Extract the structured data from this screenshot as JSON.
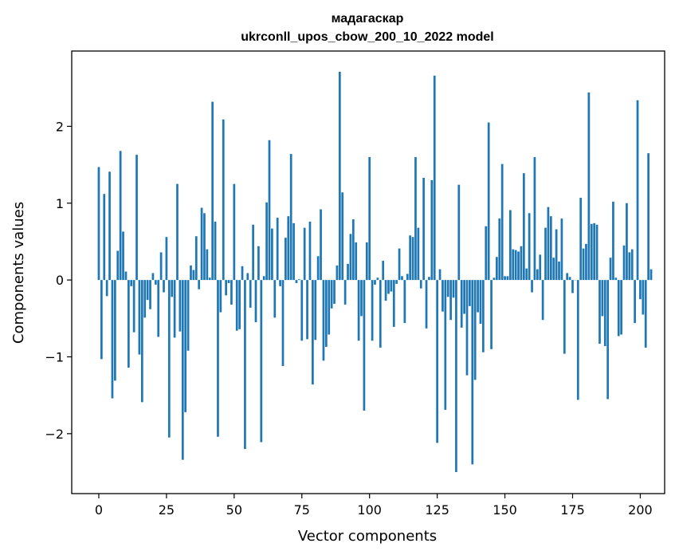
{
  "chart_data": {
    "type": "bar",
    "title": "мадагаскар",
    "subtitle": "ukrconll_upos_cbow_200_10_2022 model",
    "xlabel": "Vector components",
    "ylabel": "Components values",
    "xlim": [
      -10,
      209
    ],
    "ylim": [
      -2.78,
      2.98
    ],
    "xticks": [
      0,
      25,
      50,
      75,
      100,
      125,
      150,
      175,
      200
    ],
    "yticks": [
      -2,
      -1,
      0,
      1,
      2
    ],
    "ytick_labels": [
      "−2",
      "−1",
      "0",
      "1",
      "2"
    ],
    "bar_color": "#1f77b4",
    "values": [
      1.47,
      -1.03,
      1.12,
      -0.21,
      1.41,
      -1.54,
      -1.31,
      0.38,
      1.68,
      0.63,
      0.11,
      -1.14,
      -0.08,
      -0.68,
      1.63,
      -0.97,
      -1.59,
      -0.49,
      -0.26,
      -0.38,
      0.09,
      -0.06,
      -0.74,
      0.36,
      -0.16,
      0.56,
      -2.05,
      -0.22,
      -0.75,
      1.25,
      -0.67,
      -2.34,
      -1.72,
      -0.92,
      0.19,
      0.13,
      0.57,
      -0.12,
      0.94,
      0.87,
      0.4,
      0.03,
      2.32,
      0.76,
      -2.04,
      -0.42,
      2.09,
      -0.2,
      -0.04,
      -0.32,
      1.25,
      -0.66,
      -0.64,
      0.18,
      -2.2,
      0.09,
      -0.36,
      0.72,
      -0.55,
      0.44,
      -2.11,
      0.05,
      1.01,
      1.82,
      0.67,
      -0.49,
      0.81,
      -0.08,
      -1.12,
      0.55,
      0.83,
      1.64,
      0.74,
      -0.04,
      0.01,
      -0.79,
      0.68,
      -0.77,
      0.76,
      -1.36,
      -0.78,
      0.31,
      0.92,
      -1.05,
      -0.87,
      -0.71,
      -0.37,
      -0.31,
      0.19,
      2.71,
      1.14,
      -0.32,
      0.21,
      0.6,
      0.79,
      0.49,
      -0.79,
      -0.47,
      -1.7,
      0.49,
      1.6,
      -0.79,
      -0.06,
      0.03,
      -0.88,
      0.25,
      -0.27,
      -0.18,
      -0.15,
      -0.61,
      -0.05,
      0.41,
      0.05,
      -0.56,
      0.08,
      0.58,
      0.56,
      1.6,
      0.68,
      -0.11,
      1.33,
      -0.63,
      0.04,
      1.3,
      2.66,
      -2.12,
      0.14,
      -0.41,
      -1.69,
      -0.22,
      -0.52,
      -0.23,
      -2.5,
      1.24,
      -0.62,
      -0.44,
      -1.24,
      -0.34,
      -2.4,
      -1.3,
      -0.42,
      -0.57,
      -0.94,
      0.7,
      2.05,
      -0.9,
      0.03,
      0.3,
      0.8,
      1.51,
      0.05,
      0.05,
      0.91,
      0.4,
      0.39,
      0.37,
      0.44,
      1.39,
      0.15,
      0.87,
      -0.16,
      1.6,
      0.14,
      0.33,
      -0.52,
      0.68,
      0.95,
      0.83,
      0.29,
      0.66,
      0.24,
      0.8,
      -0.96,
      0.09,
      0.04,
      -0.17,
      0.0,
      -1.56,
      1.07,
      0.41,
      0.47,
      2.44,
      0.73,
      0.74,
      0.72,
      -0.83,
      -0.47,
      -0.86,
      -1.55,
      0.29,
      1.02,
      0.03,
      -0.73,
      -0.71,
      0.45,
      1.0,
      0.36,
      0.4,
      -0.56,
      2.34,
      -0.25,
      -0.45,
      -0.88,
      1.65,
      0.14
    ]
  }
}
